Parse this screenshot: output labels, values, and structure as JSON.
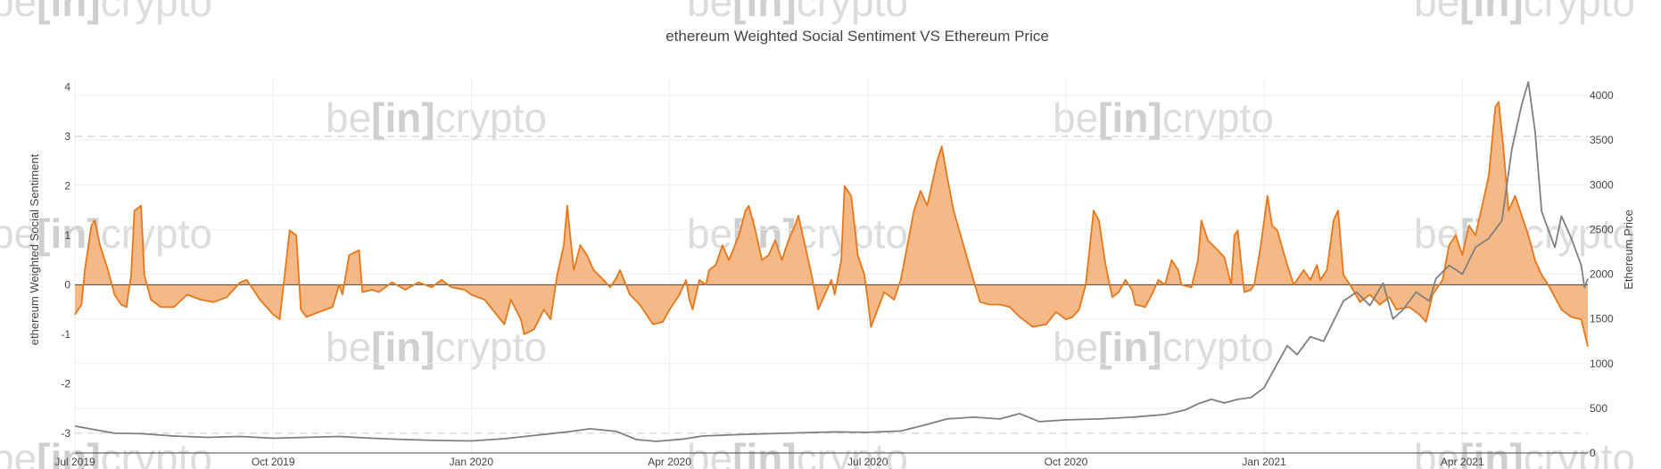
{
  "chart_data": {
    "type": "area+line",
    "title": "ethereum Weighted Social Sentiment VS Ethereum Price",
    "ylabel_left": "ethereum Weighted Social Sentiment",
    "ylabel_right": "Ethereum Price",
    "ylim_left": [
      -3.4,
      4.1
    ],
    "ylim_right": [
      0,
      4150
    ],
    "yticks_left": [
      -3,
      -2,
      -1,
      0,
      1,
      2,
      3,
      4
    ],
    "yticks_right": [
      0,
      500,
      1000,
      1500,
      2000,
      2500,
      3000,
      3500,
      4000
    ],
    "x_ticks": [
      {
        "label": "Jul 2019",
        "t": 0
      },
      {
        "label": "Oct 2019",
        "t": 3
      },
      {
        "label": "Jan 2020",
        "t": 6
      },
      {
        "label": "Apr 2020",
        "t": 9
      },
      {
        "label": "Jul 2020",
        "t": 12
      },
      {
        "label": "Oct 2020",
        "t": 15
      },
      {
        "label": "Jan 2021",
        "t": 18
      },
      {
        "label": "Apr 2021",
        "t": 21
      }
    ],
    "x_range_months": [
      0,
      22.9
    ],
    "colors": {
      "sentiment": "#e8771a",
      "sentiment_fill": "#f5b987",
      "price": "#7f7f7f",
      "zero_line": "#444444"
    },
    "series": [
      {
        "name": "Weighted Social Sentiment",
        "axis": "left",
        "points": [
          [
            0,
            -0.6
          ],
          [
            0.1,
            -0.4
          ],
          [
            0.15,
            0.3
          ],
          [
            0.25,
            1.2
          ],
          [
            0.3,
            1.3
          ],
          [
            0.38,
            0.8
          ],
          [
            0.5,
            0.3
          ],
          [
            0.6,
            -0.2
          ],
          [
            0.7,
            -0.4
          ],
          [
            0.78,
            -0.45
          ],
          [
            0.85,
            0.2
          ],
          [
            0.9,
            1.5
          ],
          [
            1.0,
            1.6
          ],
          [
            1.05,
            0.2
          ],
          [
            1.15,
            -0.3
          ],
          [
            1.3,
            -0.45
          ],
          [
            1.5,
            -0.45
          ],
          [
            1.7,
            -0.2
          ],
          [
            1.9,
            -0.3
          ],
          [
            2.1,
            -0.35
          ],
          [
            2.3,
            -0.25
          ],
          [
            2.5,
            0.05
          ],
          [
            2.6,
            0.1
          ],
          [
            2.8,
            -0.3
          ],
          [
            3.0,
            -0.6
          ],
          [
            3.1,
            -0.7
          ],
          [
            3.2,
            0.5
          ],
          [
            3.25,
            1.1
          ],
          [
            3.35,
            1.0
          ],
          [
            3.42,
            -0.5
          ],
          [
            3.5,
            -0.65
          ],
          [
            3.7,
            -0.55
          ],
          [
            3.9,
            -0.45
          ],
          [
            4.0,
            0.0
          ],
          [
            4.05,
            -0.2
          ],
          [
            4.15,
            0.6
          ],
          [
            4.3,
            0.7
          ],
          [
            4.35,
            -0.15
          ],
          [
            4.5,
            -0.1
          ],
          [
            4.6,
            -0.15
          ],
          [
            4.8,
            0.05
          ],
          [
            5.0,
            -0.1
          ],
          [
            5.2,
            0.05
          ],
          [
            5.4,
            -0.05
          ],
          [
            5.55,
            0.1
          ],
          [
            5.7,
            -0.05
          ],
          [
            5.9,
            -0.1
          ],
          [
            6.0,
            -0.2
          ],
          [
            6.2,
            -0.3
          ],
          [
            6.35,
            -0.55
          ],
          [
            6.5,
            -0.8
          ],
          [
            6.6,
            -0.3
          ],
          [
            6.75,
            -0.7
          ],
          [
            6.8,
            -1.0
          ],
          [
            6.95,
            -0.9
          ],
          [
            7.1,
            -0.5
          ],
          [
            7.2,
            -0.7
          ],
          [
            7.3,
            0.2
          ],
          [
            7.4,
            0.8
          ],
          [
            7.45,
            1.6
          ],
          [
            7.55,
            0.3
          ],
          [
            7.65,
            0.8
          ],
          [
            7.75,
            0.6
          ],
          [
            7.85,
            0.3
          ],
          [
            8.0,
            0.1
          ],
          [
            8.1,
            -0.05
          ],
          [
            8.2,
            0.15
          ],
          [
            8.25,
            0.3
          ],
          [
            8.4,
            -0.2
          ],
          [
            8.55,
            -0.4
          ],
          [
            8.75,
            -0.8
          ],
          [
            8.9,
            -0.75
          ],
          [
            9.0,
            -0.5
          ],
          [
            9.15,
            -0.2
          ],
          [
            9.25,
            0.1
          ],
          [
            9.3,
            -0.3
          ],
          [
            9.35,
            -0.5
          ],
          [
            9.45,
            0.1
          ],
          [
            9.55,
            0.0
          ],
          [
            9.6,
            0.3
          ],
          [
            9.7,
            0.4
          ],
          [
            9.8,
            0.8
          ],
          [
            9.9,
            0.5
          ],
          [
            10.05,
            1.0
          ],
          [
            10.15,
            1.5
          ],
          [
            10.2,
            1.6
          ],
          [
            10.3,
            1.1
          ],
          [
            10.4,
            0.5
          ],
          [
            10.5,
            0.6
          ],
          [
            10.6,
            0.9
          ],
          [
            10.7,
            0.5
          ],
          [
            10.8,
            0.9
          ],
          [
            10.9,
            1.2
          ],
          [
            10.95,
            1.4
          ],
          [
            11.05,
            0.8
          ],
          [
            11.15,
            0.2
          ],
          [
            11.25,
            -0.5
          ],
          [
            11.35,
            -0.2
          ],
          [
            11.45,
            0.1
          ],
          [
            11.5,
            -0.2
          ],
          [
            11.6,
            0.5
          ],
          [
            11.65,
            2.0
          ],
          [
            11.75,
            1.8
          ],
          [
            11.85,
            0.6
          ],
          [
            11.95,
            0.2
          ],
          [
            12.0,
            -0.3
          ],
          [
            12.05,
            -0.85
          ],
          [
            12.15,
            -0.5
          ],
          [
            12.25,
            -0.15
          ],
          [
            12.4,
            -0.3
          ],
          [
            12.5,
            0.1
          ],
          [
            12.6,
            0.8
          ],
          [
            12.7,
            1.5
          ],
          [
            12.8,
            1.9
          ],
          [
            12.9,
            1.6
          ],
          [
            13.05,
            2.5
          ],
          [
            13.12,
            2.8
          ],
          [
            13.2,
            2.2
          ],
          [
            13.3,
            1.5
          ],
          [
            13.45,
            0.8
          ],
          [
            13.6,
            0.1
          ],
          [
            13.7,
            -0.35
          ],
          [
            13.85,
            -0.4
          ],
          [
            14.0,
            -0.4
          ],
          [
            14.15,
            -0.45
          ],
          [
            14.3,
            -0.65
          ],
          [
            14.5,
            -0.85
          ],
          [
            14.7,
            -0.8
          ],
          [
            14.85,
            -0.55
          ],
          [
            15.0,
            -0.7
          ],
          [
            15.1,
            -0.65
          ],
          [
            15.2,
            -0.5
          ],
          [
            15.3,
            0.0
          ],
          [
            15.42,
            1.5
          ],
          [
            15.5,
            1.3
          ],
          [
            15.6,
            0.4
          ],
          [
            15.7,
            -0.25
          ],
          [
            15.8,
            -0.15
          ],
          [
            15.9,
            0.1
          ],
          [
            16.0,
            -0.1
          ],
          [
            16.05,
            -0.4
          ],
          [
            16.2,
            -0.45
          ],
          [
            16.3,
            -0.2
          ],
          [
            16.4,
            0.1
          ],
          [
            16.5,
            0.0
          ],
          [
            16.6,
            0.5
          ],
          [
            16.7,
            0.3
          ],
          [
            16.75,
            0.0
          ],
          [
            16.9,
            -0.05
          ],
          [
            17.0,
            0.5
          ],
          [
            17.05,
            1.3
          ],
          [
            17.15,
            0.9
          ],
          [
            17.3,
            0.7
          ],
          [
            17.4,
            0.55
          ],
          [
            17.5,
            0.0
          ],
          [
            17.55,
            1.0
          ],
          [
            17.6,
            1.1
          ],
          [
            17.7,
            -0.15
          ],
          [
            17.8,
            -0.1
          ],
          [
            17.85,
            0.0
          ],
          [
            17.95,
            0.8
          ],
          [
            18.05,
            1.8
          ],
          [
            18.12,
            1.2
          ],
          [
            18.2,
            1.1
          ],
          [
            18.35,
            0.4
          ],
          [
            18.45,
            0.0
          ],
          [
            18.5,
            0.1
          ],
          [
            18.6,
            0.3
          ],
          [
            18.7,
            0.1
          ],
          [
            18.8,
            0.4
          ],
          [
            18.85,
            0.1
          ],
          [
            18.95,
            0.3
          ],
          [
            19.05,
            1.3
          ],
          [
            19.12,
            1.5
          ],
          [
            19.2,
            0.2
          ],
          [
            19.3,
            0.0
          ],
          [
            19.45,
            -0.35
          ],
          [
            19.6,
            -0.2
          ],
          [
            19.75,
            -0.4
          ],
          [
            19.9,
            -0.25
          ],
          [
            20.0,
            -0.5
          ],
          [
            20.2,
            -0.45
          ],
          [
            20.35,
            -0.6
          ],
          [
            20.45,
            -0.75
          ],
          [
            20.55,
            -0.2
          ],
          [
            20.7,
            0.1
          ],
          [
            20.8,
            0.8
          ],
          [
            20.9,
            1.0
          ],
          [
            21.0,
            0.6
          ],
          [
            21.1,
            1.2
          ],
          [
            21.2,
            1.0
          ],
          [
            21.3,
            1.6
          ],
          [
            21.4,
            2.2
          ],
          [
            21.5,
            3.6
          ],
          [
            21.55,
            3.7
          ],
          [
            21.62,
            2.8
          ],
          [
            21.7,
            1.5
          ],
          [
            21.8,
            1.8
          ],
          [
            21.9,
            1.4
          ],
          [
            22.0,
            1.0
          ],
          [
            22.1,
            0.5
          ],
          [
            22.2,
            0.2
          ],
          [
            22.3,
            0.0
          ],
          [
            22.4,
            -0.25
          ],
          [
            22.5,
            -0.5
          ],
          [
            22.65,
            -0.65
          ],
          [
            22.8,
            -0.7
          ],
          [
            22.9,
            -1.25
          ]
        ]
      },
      {
        "name": "Ethereum Price",
        "axis": "right",
        "points": [
          [
            0,
            300
          ],
          [
            0.3,
            260
          ],
          [
            0.6,
            220
          ],
          [
            1.0,
            215
          ],
          [
            1.5,
            190
          ],
          [
            2.0,
            175
          ],
          [
            2.5,
            185
          ],
          [
            3.0,
            165
          ],
          [
            3.5,
            175
          ],
          [
            4.0,
            185
          ],
          [
            4.5,
            165
          ],
          [
            5.0,
            150
          ],
          [
            5.5,
            140
          ],
          [
            6.0,
            135
          ],
          [
            6.5,
            160
          ],
          [
            7.0,
            200
          ],
          [
            7.5,
            240
          ],
          [
            7.8,
            270
          ],
          [
            8.2,
            240
          ],
          [
            8.5,
            150
          ],
          [
            8.8,
            130
          ],
          [
            9.2,
            155
          ],
          [
            9.5,
            190
          ],
          [
            10.0,
            205
          ],
          [
            10.5,
            215
          ],
          [
            11.0,
            225
          ],
          [
            11.5,
            235
          ],
          [
            12.0,
            230
          ],
          [
            12.5,
            245
          ],
          [
            12.8,
            300
          ],
          [
            13.2,
            380
          ],
          [
            13.6,
            400
          ],
          [
            14.0,
            380
          ],
          [
            14.3,
            440
          ],
          [
            14.6,
            350
          ],
          [
            15.0,
            370
          ],
          [
            15.5,
            380
          ],
          [
            16.0,
            400
          ],
          [
            16.5,
            430
          ],
          [
            16.8,
            480
          ],
          [
            17.0,
            550
          ],
          [
            17.2,
            600
          ],
          [
            17.4,
            560
          ],
          [
            17.6,
            600
          ],
          [
            17.8,
            620
          ],
          [
            18.0,
            730
          ],
          [
            18.2,
            1000
          ],
          [
            18.35,
            1200
          ],
          [
            18.5,
            1100
          ],
          [
            18.7,
            1300
          ],
          [
            18.9,
            1250
          ],
          [
            19.0,
            1400
          ],
          [
            19.2,
            1700
          ],
          [
            19.4,
            1800
          ],
          [
            19.6,
            1650
          ],
          [
            19.8,
            1900
          ],
          [
            19.95,
            1500
          ],
          [
            20.1,
            1600
          ],
          [
            20.3,
            1800
          ],
          [
            20.5,
            1700
          ],
          [
            20.6,
            1950
          ],
          [
            20.8,
            2100
          ],
          [
            21.0,
            2000
          ],
          [
            21.2,
            2300
          ],
          [
            21.4,
            2400
          ],
          [
            21.6,
            2600
          ],
          [
            21.75,
            3400
          ],
          [
            21.9,
            3900
          ],
          [
            22.0,
            4150
          ],
          [
            22.1,
            3600
          ],
          [
            22.2,
            2700
          ],
          [
            22.3,
            2500
          ],
          [
            22.4,
            2300
          ],
          [
            22.5,
            2650
          ],
          [
            22.65,
            2400
          ],
          [
            22.8,
            2100
          ],
          [
            22.85,
            1850
          ],
          [
            22.9,
            1950
          ]
        ]
      }
    ]
  },
  "watermark": {
    "prefix": "be",
    "bracket_open": "[",
    "core": "in",
    "bracket_close": "]",
    "suffix": "crypto"
  }
}
